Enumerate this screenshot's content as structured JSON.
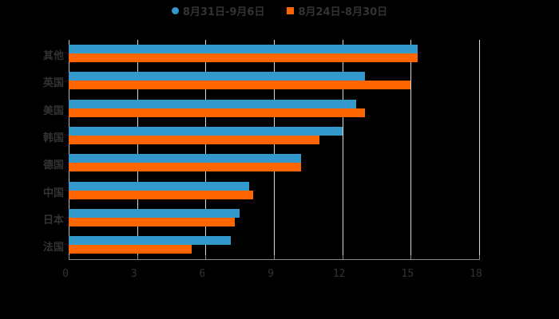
{
  "chart_data": {
    "type": "bar",
    "orientation": "horizontal",
    "title": "",
    "xlabel": "",
    "ylabel": "",
    "xlim": [
      0,
      18
    ],
    "xticks": [
      "0",
      "3",
      "6",
      "9",
      "12",
      "15",
      "18"
    ],
    "grid": true,
    "legend_position": "top",
    "categories": [
      "其他",
      "英国",
      "美国",
      "韩国",
      "德国",
      "中国",
      "日本",
      "法国"
    ],
    "series": [
      {
        "name": "8月31日-9月6日",
        "color": "#3399cc",
        "values": [
          15.3,
          13.0,
          12.6,
          12.0,
          10.2,
          7.9,
          7.5,
          7.1
        ]
      },
      {
        "name": "8月24日-8月30日",
        "color": "#ff6600",
        "values": [
          15.3,
          15.0,
          13.0,
          11.0,
          10.2,
          8.1,
          7.3,
          5.4
        ]
      }
    ]
  },
  "legend": {
    "series1": "8月31日-9月6日",
    "series2": "8月24日-8月30日"
  }
}
